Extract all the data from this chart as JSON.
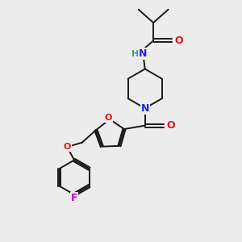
{
  "background_color": "#ececec",
  "bond_color": "#1a1a1a",
  "atom_colors": {
    "N": "#2020e8",
    "O": "#e81010",
    "F": "#cc00cc",
    "H": "#4a9a8a",
    "C": "#1a1a1a"
  }
}
